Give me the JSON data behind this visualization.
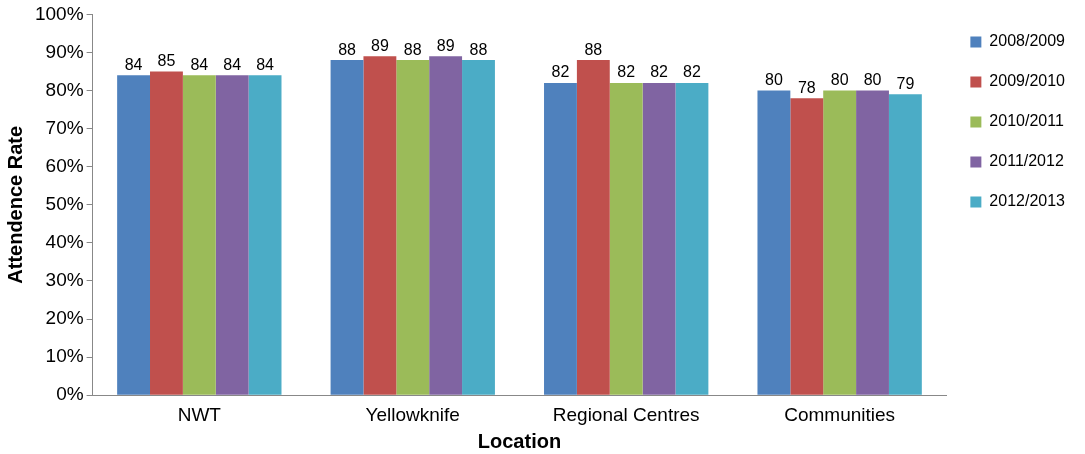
{
  "chart_data": {
    "type": "bar",
    "xlabel": "Location",
    "ylabel": "Attendence Rate",
    "categories": [
      "NWT",
      "Yellowknife",
      "Regional Centres",
      "Communities"
    ],
    "series": [
      {
        "name": "2008/2009",
        "color": "#4f81bd",
        "values": [
          84,
          88,
          82,
          80
        ]
      },
      {
        "name": "2009/2010",
        "color": "#c0504d",
        "values": [
          85,
          89,
          88,
          78
        ]
      },
      {
        "name": "2010/2011",
        "color": "#9bbb59",
        "values": [
          84,
          88,
          82,
          80
        ]
      },
      {
        "name": "2011/2012",
        "color": "#8064a2",
        "values": [
          84,
          89,
          82,
          80
        ]
      },
      {
        "name": "2012/2013",
        "color": "#4bacc6",
        "values": [
          84,
          88,
          82,
          79
        ]
      }
    ],
    "ylim": [
      0,
      100
    ],
    "yticks": [
      {
        "value": 0,
        "label": "0%"
      },
      {
        "value": 10,
        "label": "10%"
      },
      {
        "value": 20,
        "label": "20%"
      },
      {
        "value": 30,
        "label": "30%"
      },
      {
        "value": 40,
        "label": "40%"
      },
      {
        "value": 50,
        "label": "50%"
      },
      {
        "value": 60,
        "label": "60%"
      },
      {
        "value": 70,
        "label": "70%"
      },
      {
        "value": 80,
        "label": "80%"
      },
      {
        "value": 90,
        "label": "90%"
      },
      {
        "value": 100,
        "label": "100%"
      }
    ],
    "grid": false,
    "legend": "right",
    "data_labels": true
  }
}
